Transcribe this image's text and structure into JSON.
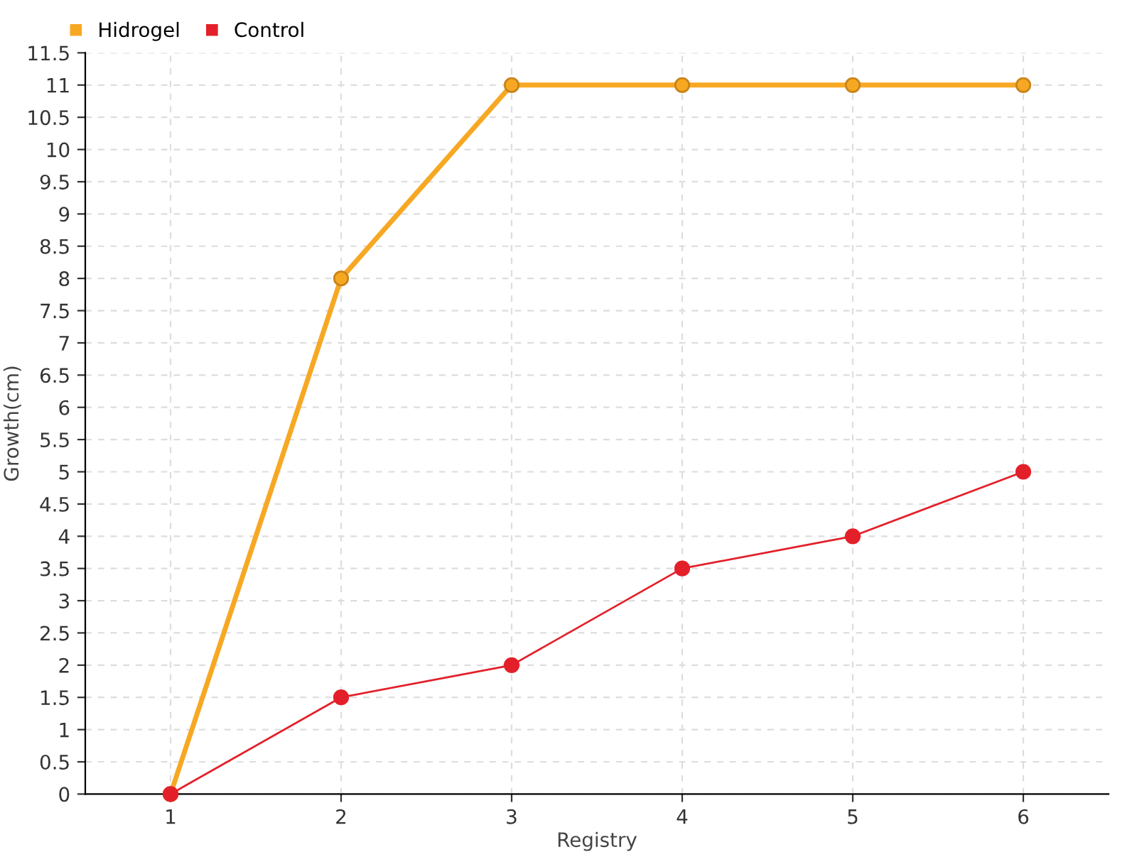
{
  "chart_data": {
    "type": "line",
    "xlabel": "Registry",
    "ylabel": "Growth(cm)",
    "categories": [
      "1",
      "2",
      "3",
      "4",
      "5",
      "6"
    ],
    "series": [
      {
        "name": "Hidrogel",
        "color": "#f7a823",
        "values": [
          0,
          8,
          11,
          11,
          11,
          11
        ]
      },
      {
        "name": "Control",
        "color": "#e3202a",
        "values": [
          0,
          1.5,
          2,
          3.5,
          4,
          5
        ]
      }
    ],
    "ylim": [
      0,
      11.5
    ],
    "yticks": [
      0,
      0.5,
      1,
      1.5,
      2,
      2.5,
      3,
      3.5,
      4,
      4.5,
      5,
      5.5,
      6,
      6.5,
      7,
      7.5,
      8,
      8.5,
      9,
      9.5,
      10,
      10.5,
      11,
      11.5
    ],
    "grid": true,
    "legend": "top left",
    "marker": "circle",
    "line_style": "solid"
  }
}
